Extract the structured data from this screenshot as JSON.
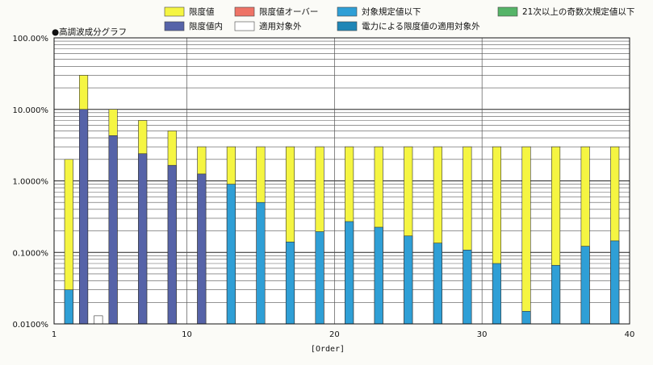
{
  "chart_data": {
    "type": "bar",
    "title": "●高調波成分グラフ",
    "xlabel": "[Order]",
    "ylabel": "",
    "y_scale": "log",
    "ylim": [
      0.01,
      100
    ],
    "xlim": [
      1,
      40
    ],
    "y_ticks": [
      {
        "value": 100,
        "label": "100.00%"
      },
      {
        "value": 10,
        "label": "10.000%"
      },
      {
        "value": 1,
        "label": "1.0000%"
      },
      {
        "value": 0.1,
        "label": "0.1000%"
      },
      {
        "value": 0.01,
        "label": "0.0100%"
      }
    ],
    "x_ticks": [
      {
        "value": 1,
        "label": "1"
      },
      {
        "value": 10,
        "label": "10"
      },
      {
        "value": 20,
        "label": "20"
      },
      {
        "value": 30,
        "label": "30"
      },
      {
        "value": 40,
        "label": "40"
      }
    ],
    "grid": true,
    "legend_position": "top",
    "legend": [
      {
        "label": "限度値",
        "color": "#f5f542"
      },
      {
        "label": "限度値オーバー",
        "color": "#ee7366"
      },
      {
        "label": "対象規定値以下",
        "color": "#2f9fd6"
      },
      {
        "label": "21次以上の奇数次規定値以下",
        "color": "#55b468"
      },
      {
        "label": "限度値内",
        "color": "#5663a8"
      },
      {
        "label": "適用対象外",
        "color": "#ffffff"
      },
      {
        "label": "電力による限度値の適用対象外",
        "color": "#1f86b6"
      }
    ],
    "series": [
      {
        "name": "限度値",
        "color": "#f5f542",
        "points": [
          {
            "x": 2,
            "y": 2.0
          },
          {
            "x": 3,
            "y": 30
          },
          {
            "x": 5,
            "y": 10
          },
          {
            "x": 7,
            "y": 7
          },
          {
            "x": 9,
            "y": 5
          },
          {
            "x": 11,
            "y": 3
          },
          {
            "x": 13,
            "y": 3
          },
          {
            "x": 15,
            "y": 3
          },
          {
            "x": 17,
            "y": 3
          },
          {
            "x": 19,
            "y": 3
          },
          {
            "x": 21,
            "y": 3
          },
          {
            "x": 23,
            "y": 3
          },
          {
            "x": 25,
            "y": 3
          },
          {
            "x": 27,
            "y": 3
          },
          {
            "x": 29,
            "y": 3
          },
          {
            "x": 31,
            "y": 3
          },
          {
            "x": 33,
            "y": 3
          },
          {
            "x": 35,
            "y": 3
          },
          {
            "x": 37,
            "y": 3
          },
          {
            "x": 39,
            "y": 3
          }
        ]
      },
      {
        "name": "限度値内",
        "color": "#5663a8",
        "points": [
          {
            "x": 3,
            "y": 10
          },
          {
            "x": 5,
            "y": 4.3
          },
          {
            "x": 7,
            "y": 2.4
          },
          {
            "x": 9,
            "y": 1.65
          },
          {
            "x": 11,
            "y": 1.25
          }
        ]
      },
      {
        "name": "対象規定値以下",
        "color": "#2f9fd6",
        "points": [
          {
            "x": 2,
            "y": 0.03
          },
          {
            "x": 13,
            "y": 0.9
          },
          {
            "x": 15,
            "y": 0.5
          },
          {
            "x": 17,
            "y": 0.14
          },
          {
            "x": 19,
            "y": 0.195
          },
          {
            "x": 21,
            "y": 0.27
          },
          {
            "x": 23,
            "y": 0.225
          },
          {
            "x": 25,
            "y": 0.17
          },
          {
            "x": 27,
            "y": 0.135
          },
          {
            "x": 29,
            "y": 0.108
          },
          {
            "x": 31,
            "y": 0.07
          },
          {
            "x": 33,
            "y": 0.015
          },
          {
            "x": 35,
            "y": 0.066
          },
          {
            "x": 37,
            "y": 0.122
          },
          {
            "x": 39,
            "y": 0.145
          }
        ]
      },
      {
        "name": "適用対象外",
        "color": "#ffffff",
        "points": [
          {
            "x": 4,
            "y": 0.013
          }
        ]
      }
    ]
  }
}
